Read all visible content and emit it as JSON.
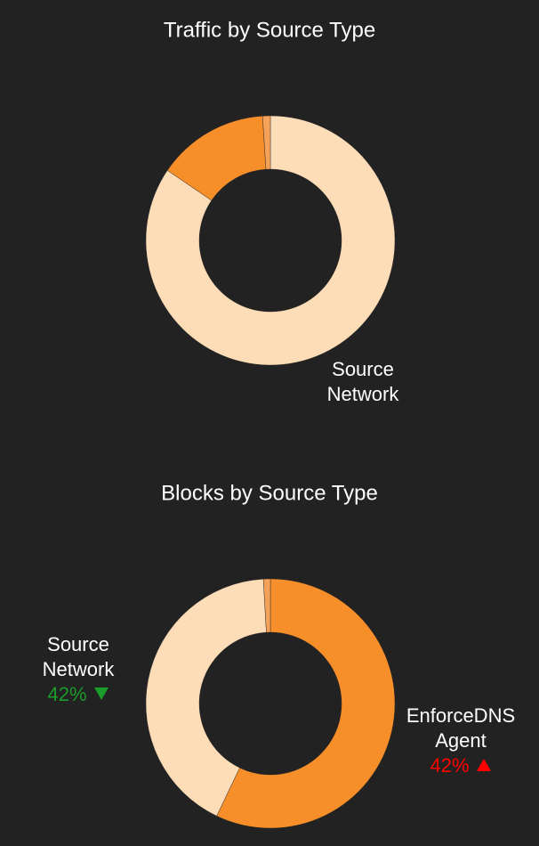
{
  "chart_data": [
    {
      "type": "donut",
      "title": "Traffic by Source Type",
      "categories": [
        "Source Network",
        null,
        null
      ],
      "values": [
        84.5,
        14.5,
        1
      ],
      "colors": [
        "#fddcb8",
        "#f68f2a",
        "#f4a15a"
      ]
    },
    {
      "type": "donut",
      "title": "Blocks by Source Type",
      "categories": [
        "EnforceDNS Agent",
        "Source Network",
        null
      ],
      "values": [
        57.1,
        42,
        0.9
      ],
      "colors": [
        "#f68f2a",
        "#fddcb8",
        "#f4a15a"
      ],
      "changes": [
        "42%",
        "42%",
        null
      ],
      "change_directions": [
        "up",
        "down",
        null
      ],
      "change_colors": [
        "#ff0000",
        "#1a9c2a",
        null
      ]
    }
  ]
}
